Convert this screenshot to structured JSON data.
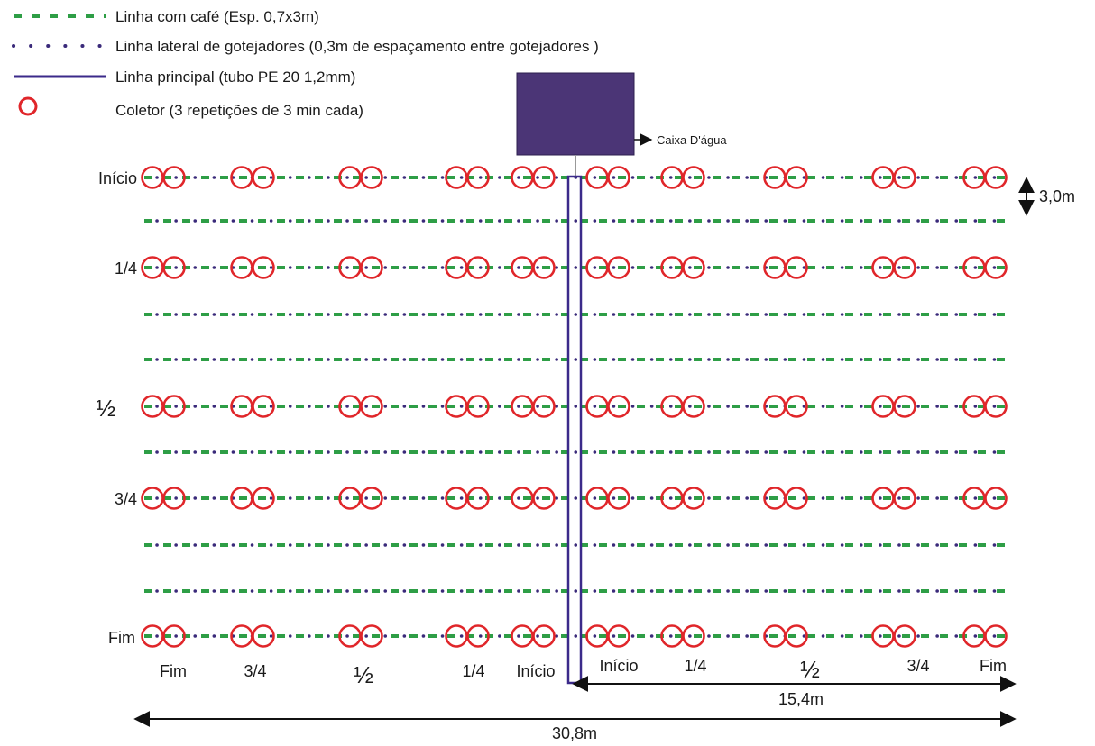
{
  "legend": {
    "coffee_line": "Linha com café (Esp. 0,7x3m)",
    "lateral_line": "Linha lateral de gotejadores (0,3m de espaçamento entre gotejadores )",
    "main_line": "Linha principal (tubo PE 20 1,2mm)",
    "collector": "Coletor (3 repetições de 3 min cada)"
  },
  "tank": {
    "label": "Caixa D'água",
    "color": "#4b3576"
  },
  "colors": {
    "coffee": "#2e9e46",
    "lateral": "#3a2a7a",
    "main_pipe": "#3b2a8a",
    "collector": "#e0262a"
  },
  "row_labels": [
    "Início",
    "1/4",
    "½",
    "3/4",
    "Fim"
  ],
  "left_position_labels": [
    "Fim",
    "3/4",
    "½",
    "1/4",
    "Início"
  ],
  "right_position_labels": [
    "Início",
    "1/4",
    "½",
    "3/4",
    "Fim"
  ],
  "dimensions": {
    "row_spacing": "3,0m",
    "half_width": "15,4m",
    "total_width": "30,8m"
  }
}
